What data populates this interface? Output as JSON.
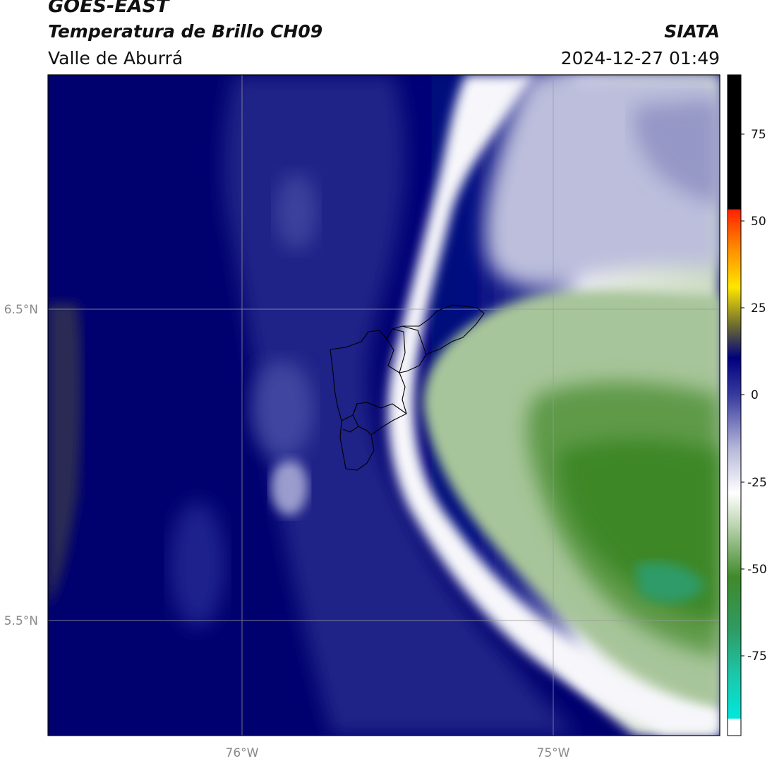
{
  "header": {
    "satellite": "GOES-EAST",
    "product": "Temperatura de Brillo CH09",
    "region": "Valle de Aburrá",
    "brand": "SIATA",
    "datetime": "2024-12-27 01:49"
  },
  "map": {
    "lat_gridlines": [
      "6.5°N",
      "5.5°N"
    ],
    "lon_gridlines": [
      "76°W",
      "75°W"
    ]
  },
  "colorbar": {
    "ticks": [
      "75",
      "50",
      "25",
      "0",
      "-25",
      "-50",
      "-75"
    ],
    "colors": {
      "warm_black": "#000000",
      "red": "#ff2200",
      "orange": "#ff8c00",
      "yellow": "#ffe600",
      "olive": "#6b6b30",
      "navy": "#00007e",
      "blue_mid": "#3a3ea0",
      "lavender": "#b5b7d9",
      "white": "#ffffff",
      "green_light": "#bcd4b0",
      "green": "#3f8a2a",
      "teal": "#2aa87e",
      "cyan": "#00e5d8"
    }
  }
}
